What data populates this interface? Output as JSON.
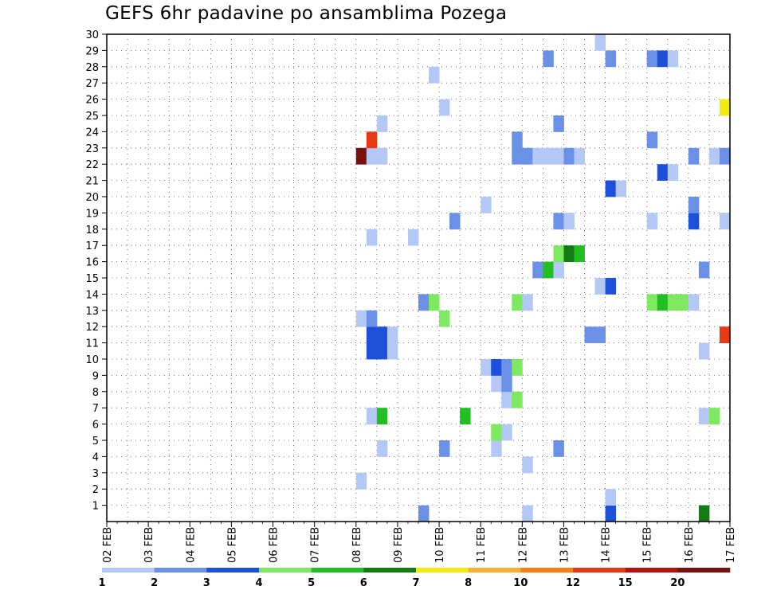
{
  "chart_data": {
    "type": "heatmap",
    "title": "GEFS 6hr padavine po ansamblima Pozega",
    "x_tick_labels": [
      "02 FEB",
      "03 FEB",
      "04 FEB",
      "05 FEB",
      "06 FEB",
      "07 FEB",
      "08 FEB",
      "09 FEB",
      "10 FEB",
      "11 FEB",
      "12 FEB",
      "13 FEB",
      "14 FEB",
      "15 FEB",
      "16 FEB",
      "17 FEB"
    ],
    "y_tick_labels": [
      "1",
      "2",
      "3",
      "4",
      "5",
      "6",
      "7",
      "8",
      "9",
      "10",
      "11",
      "12",
      "13",
      "14",
      "15",
      "16",
      "17",
      "18",
      "19",
      "20",
      "21",
      "22",
      "23",
      "24",
      "25",
      "26",
      "27",
      "28",
      "29",
      "30"
    ],
    "y_range": [
      0,
      30
    ],
    "x_range_days": [
      0,
      15
    ],
    "grid": true,
    "colorbar_levels": [
      "1",
      "2",
      "3",
      "4",
      "5",
      "6",
      "7",
      "8",
      "10",
      "12",
      "15",
      "20"
    ],
    "colorbar_colors": [
      "#b4c8f5",
      "#6a90e8",
      "#1e4fd8",
      "#7ee860",
      "#22bf22",
      "#137b13",
      "#f0ec10",
      "#f8b030",
      "#f87e18",
      "#e63a14",
      "#b41212",
      "#78100c"
    ],
    "cells_note": "each cell: [member, day_offset_from_02FEB(6h steps of 0.25), color_class 1..12]",
    "cells": [
      [
        0,
        7.5,
        2
      ],
      [
        0,
        10,
        1
      ],
      [
        0,
        12,
        3
      ],
      [
        0,
        14.25,
        6
      ],
      [
        1,
        12,
        1
      ],
      [
        2,
        6,
        1
      ],
      [
        3,
        10,
        1
      ],
      [
        4,
        6.5,
        1
      ],
      [
        4,
        8,
        2
      ],
      [
        4,
        9.25,
        1
      ],
      [
        4,
        10.75,
        2
      ],
      [
        5,
        9.25,
        4
      ],
      [
        5,
        9.5,
        1
      ],
      [
        6,
        6.25,
        1
      ],
      [
        6,
        6.5,
        5
      ],
      [
        6,
        8.5,
        5
      ],
      [
        6,
        14.25,
        1
      ],
      [
        6,
        14.5,
        4
      ],
      [
        7,
        9.5,
        1
      ],
      [
        7,
        9.75,
        4
      ],
      [
        8,
        9.25,
        1
      ],
      [
        8,
        9.5,
        2
      ],
      [
        9,
        9,
        1
      ],
      [
        9,
        9.25,
        3
      ],
      [
        9,
        9.5,
        2
      ],
      [
        9,
        9.75,
        4
      ],
      [
        10,
        6.25,
        3
      ],
      [
        10,
        6.5,
        3
      ],
      [
        10,
        6.75,
        1
      ],
      [
        10,
        14.25,
        1
      ],
      [
        11,
        6.25,
        3
      ],
      [
        11,
        6.5,
        3
      ],
      [
        11,
        6.75,
        1
      ],
      [
        11,
        11.5,
        2
      ],
      [
        11,
        11.75,
        2
      ],
      [
        11,
        14.75,
        10
      ],
      [
        12,
        6,
        1
      ],
      [
        12,
        6.25,
        2
      ],
      [
        12,
        8,
        4
      ],
      [
        13,
        7.5,
        2
      ],
      [
        13,
        7.75,
        4
      ],
      [
        13,
        9.75,
        4
      ],
      [
        13,
        10,
        1
      ],
      [
        13,
        13,
        4
      ],
      [
        13,
        13.25,
        5
      ],
      [
        13,
        13.5,
        4
      ],
      [
        13,
        13.75,
        4
      ],
      [
        13,
        14,
        1
      ],
      [
        14,
        11.75,
        1
      ],
      [
        14,
        12,
        3
      ],
      [
        15,
        10.25,
        2
      ],
      [
        15,
        10.5,
        5
      ],
      [
        15,
        10.75,
        1
      ],
      [
        15,
        14.25,
        2
      ],
      [
        16,
        10.75,
        4
      ],
      [
        16,
        11,
        6
      ],
      [
        16,
        11.25,
        5
      ],
      [
        17,
        6.25,
        1
      ],
      [
        17,
        7.25,
        1
      ],
      [
        18,
        8.25,
        2
      ],
      [
        18,
        10.75,
        2
      ],
      [
        18,
        11,
        1
      ],
      [
        18,
        13,
        1
      ],
      [
        18,
        14,
        3
      ],
      [
        18,
        14.75,
        1
      ],
      [
        19,
        9,
        1
      ],
      [
        19,
        14,
        2
      ],
      [
        20,
        12,
        3
      ],
      [
        20,
        12.25,
        1
      ],
      [
        21,
        13.25,
        3
      ],
      [
        21,
        13.5,
        1
      ],
      [
        22,
        6,
        12
      ],
      [
        22,
        6.25,
        1
      ],
      [
        22,
        6.5,
        1
      ],
      [
        22,
        9.75,
        2
      ],
      [
        22,
        10,
        2
      ],
      [
        22,
        10.25,
        1
      ],
      [
        22,
        10.5,
        1
      ],
      [
        22,
        10.75,
        1
      ],
      [
        22,
        11,
        2
      ],
      [
        22,
        11.25,
        1
      ],
      [
        22,
        14,
        2
      ],
      [
        22,
        14.5,
        1
      ],
      [
        22,
        14.75,
        2
      ],
      [
        23,
        6.25,
        10
      ],
      [
        23,
        9.75,
        2
      ],
      [
        23,
        13,
        2
      ],
      [
        24,
        6.5,
        1
      ],
      [
        24,
        10.75,
        2
      ],
      [
        25,
        8,
        1
      ],
      [
        25,
        14.75,
        7
      ],
      [
        27,
        7.75,
        1
      ],
      [
        28,
        10.5,
        2
      ],
      [
        28,
        12,
        2
      ],
      [
        28,
        13,
        2
      ],
      [
        28,
        13.25,
        3
      ],
      [
        28,
        13.5,
        1
      ],
      [
        29,
        11.75,
        1
      ]
    ]
  }
}
